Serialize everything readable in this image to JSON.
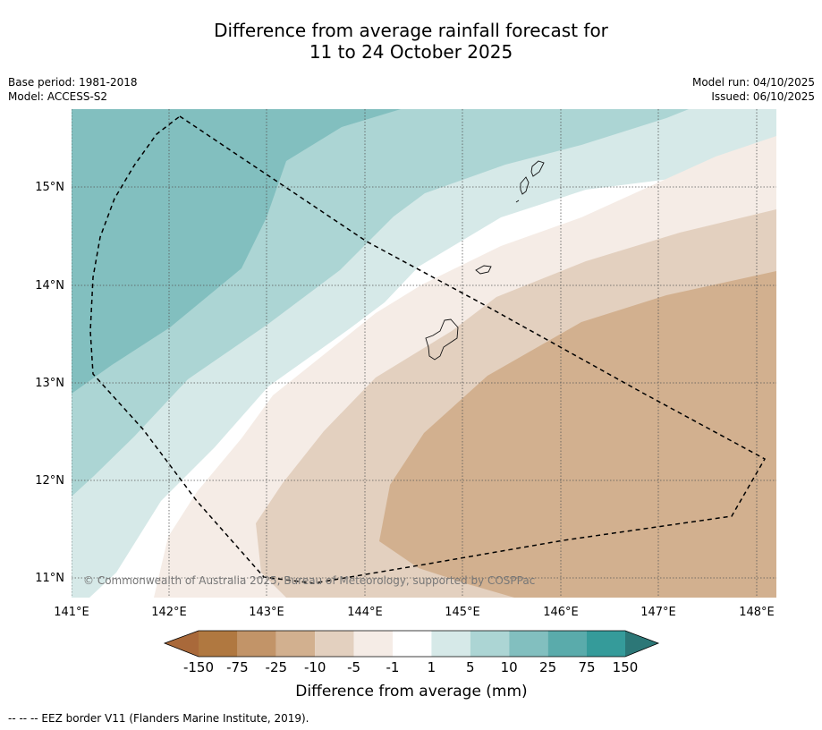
{
  "header": {
    "title_line1": "Difference from average rainfall forecast for",
    "title_line2": "11 to 24 October 2025",
    "base_period": "Base period: 1981-2018",
    "model": "Model: ACCESS-S2",
    "model_run": "Model run: 04/10/2025",
    "issued": "Issued: 06/10/2025"
  },
  "map": {
    "lon_labels": [
      "141°E",
      "142°E",
      "143°E",
      "144°E",
      "145°E",
      "146°E",
      "147°E",
      "148°E"
    ],
    "lat_labels": [
      "15°N",
      "14°N",
      "13°N",
      "12°N",
      "11°N"
    ],
    "copyright": "© Commonwealth of Australia 2025, Bureau of Meteorology, supported by COSPPac"
  },
  "colorbar": {
    "ticks": [
      "-150",
      "-75",
      "-25",
      "-10",
      "-5",
      "-1",
      "1",
      "5",
      "10",
      "25",
      "75",
      "150"
    ],
    "colors": [
      "#a9693a",
      "#b07840",
      "#c29468",
      "#d2b08f",
      "#e3d0bf",
      "#f5ece6",
      "#ffffff",
      "#d6e9e8",
      "#acd5d4",
      "#82bfbf",
      "#5aabab",
      "#359b9a",
      "#2c7777"
    ],
    "label": "Difference from average (mm)"
  },
  "footer": {
    "legend_text": "--  --  -- EEZ border V11 (Flanders Marine Institute, 2019)."
  }
}
